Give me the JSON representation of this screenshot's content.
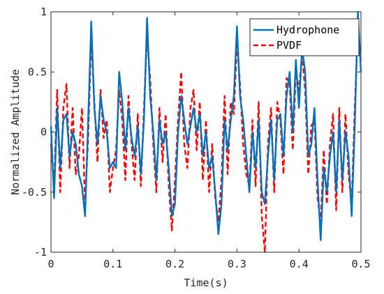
{
  "chart_data": {
    "type": "line",
    "title": "",
    "xlabel": "Time(s)",
    "ylabel": "Normalized Amplitude",
    "xlim": [
      0,
      0.5
    ],
    "ylim": [
      -1,
      1
    ],
    "xticks": [
      0,
      0.1,
      0.2,
      0.3,
      0.4,
      0.5
    ],
    "xtick_labels": [
      "0",
      "0.1",
      "0.2",
      "0.3",
      "0.4",
      "0.5"
    ],
    "yticks": [
      -1,
      -0.5,
      0,
      0.5,
      1
    ],
    "ytick_labels": [
      "-1",
      "-0.5",
      "0",
      "0.5",
      "1"
    ],
    "grid": false,
    "legend_position": "top-right",
    "series": [
      {
        "name": "Hydrophone",
        "color": "#0072BD",
        "style": "solid",
        "x": [
          0,
          0.005,
          0.01,
          0.015,
          0.02,
          0.025,
          0.03,
          0.035,
          0.04,
          0.045,
          0.05,
          0.055,
          0.06,
          0.065,
          0.07,
          0.075,
          0.08,
          0.085,
          0.09,
          0.095,
          0.1,
          0.105,
          0.11,
          0.115,
          0.12,
          0.125,
          0.13,
          0.135,
          0.14,
          0.145,
          0.15,
          0.155,
          0.16,
          0.165,
          0.17,
          0.175,
          0.18,
          0.185,
          0.19,
          0.195,
          0.2,
          0.205,
          0.21,
          0.215,
          0.22,
          0.225,
          0.23,
          0.235,
          0.24,
          0.245,
          0.25,
          0.255,
          0.26,
          0.265,
          0.27,
          0.275,
          0.28,
          0.285,
          0.29,
          0.295,
          0.3,
          0.305,
          0.31,
          0.315,
          0.32,
          0.325,
          0.33,
          0.335,
          0.34,
          0.345,
          0.35,
          0.355,
          0.36,
          0.365,
          0.37,
          0.375,
          0.38,
          0.385,
          0.39,
          0.395,
          0.4,
          0.405,
          0.41,
          0.415,
          0.42,
          0.425,
          0.43,
          0.435,
          0.44,
          0.445,
          0.45,
          0.455,
          0.46,
          0.465,
          0.47,
          0.475,
          0.48,
          0.485,
          0.49,
          0.495,
          0.5
        ],
        "values": [
          0.05,
          -0.55,
          0.2,
          -0.3,
          0.1,
          0.15,
          -0.2,
          0.0,
          -0.1,
          -0.35,
          -0.45,
          -0.7,
          0.1,
          0.92,
          0.2,
          -0.1,
          0.3,
          0.1,
          0.0,
          -0.3,
          -0.25,
          -0.3,
          0.5,
          0.25,
          -0.15,
          0.2,
          -0.05,
          -0.2,
          0.05,
          -0.35,
          0.1,
          0.95,
          0.3,
          0.0,
          -0.4,
          0.1,
          -0.1,
          0.0,
          -0.3,
          -0.7,
          -0.6,
          0.0,
          0.3,
          0.1,
          -0.1,
          0.05,
          0.2,
          0.0,
          0.15,
          -0.2,
          0.0,
          -0.3,
          -0.2,
          -0.5,
          -0.85,
          -0.6,
          0.1,
          -0.15,
          0.1,
          0.3,
          0.88,
          0.3,
          0.1,
          -0.2,
          -0.5,
          0.0,
          -0.3,
          0.1,
          -0.5,
          -0.6,
          -0.2,
          0.1,
          -0.4,
          0.1,
          0.15,
          -0.2,
          0.3,
          0.5,
          0.0,
          0.6,
          0.2,
          0.7,
          0.5,
          -0.2,
          -0.1,
          0.2,
          -0.4,
          -0.9,
          -0.3,
          -0.5,
          -0.2,
          0.0,
          -0.5,
          0.1,
          -0.4,
          0.0,
          -0.2,
          -0.7,
          0.05,
          1.0,
          0.5
        ]
      },
      {
        "name": "PVDF",
        "color": "#FF0000",
        "style": "dashed",
        "x": [
          0,
          0.005,
          0.01,
          0.015,
          0.02,
          0.025,
          0.03,
          0.035,
          0.04,
          0.045,
          0.05,
          0.055,
          0.06,
          0.065,
          0.07,
          0.075,
          0.08,
          0.085,
          0.09,
          0.095,
          0.1,
          0.105,
          0.11,
          0.115,
          0.12,
          0.125,
          0.13,
          0.135,
          0.14,
          0.145,
          0.15,
          0.155,
          0.16,
          0.165,
          0.17,
          0.175,
          0.18,
          0.185,
          0.19,
          0.195,
          0.2,
          0.205,
          0.21,
          0.215,
          0.22,
          0.225,
          0.23,
          0.235,
          0.24,
          0.245,
          0.25,
          0.255,
          0.26,
          0.265,
          0.27,
          0.275,
          0.28,
          0.285,
          0.29,
          0.295,
          0.3,
          0.305,
          0.31,
          0.315,
          0.32,
          0.325,
          0.33,
          0.335,
          0.34,
          0.345,
          0.35,
          0.355,
          0.36,
          0.365,
          0.37,
          0.375,
          0.38,
          0.385,
          0.39,
          0.395,
          0.4,
          0.405,
          0.41,
          0.415,
          0.42,
          0.425,
          0.43,
          0.435,
          0.44,
          0.445,
          0.45,
          0.455,
          0.46,
          0.465,
          0.47,
          0.475,
          0.48,
          0.485,
          0.49,
          0.495,
          0.5
        ],
        "values": [
          -0.1,
          -0.45,
          0.35,
          -0.5,
          0.2,
          0.4,
          -0.3,
          0.2,
          -0.35,
          -0.2,
          0.2,
          -0.6,
          -0.05,
          0.8,
          0.25,
          -0.25,
          0.35,
          -0.05,
          0.1,
          -0.5,
          -0.3,
          -0.15,
          0.35,
          0.1,
          -0.4,
          0.3,
          -0.1,
          -0.4,
          0.15,
          -0.45,
          0.2,
          0.8,
          0.45,
          -0.1,
          -0.5,
          0.2,
          -0.25,
          0.15,
          -0.45,
          -0.82,
          -0.4,
          0.1,
          0.5,
          -0.1,
          -0.3,
          0.2,
          0.35,
          -0.15,
          0.25,
          -0.4,
          0.1,
          -0.5,
          -0.1,
          -0.55,
          -0.75,
          -0.4,
          0.3,
          -0.35,
          0.25,
          0.15,
          0.75,
          0.4,
          -0.1,
          -0.35,
          -0.45,
          0.1,
          -0.45,
          0.25,
          -0.7,
          -1.0,
          -0.1,
          0.2,
          -0.5,
          0.25,
          0.1,
          -0.35,
          0.45,
          0.4,
          -0.15,
          0.5,
          0.35,
          0.65,
          0.35,
          -0.35,
          0.05,
          0.1,
          -0.55,
          -0.75,
          -0.15,
          -0.6,
          -0.1,
          0.15,
          -0.65,
          0.2,
          -0.5,
          0.15,
          -0.35,
          -0.6,
          0.2,
          0.85,
          0.6
        ]
      }
    ]
  }
}
